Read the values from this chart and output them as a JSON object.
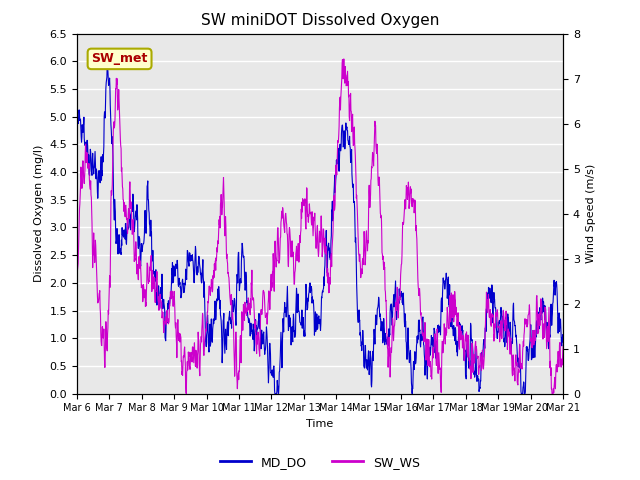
{
  "title": "SW miniDOT Dissolved Oxygen",
  "xlabel": "Time",
  "ylabel_left": "Dissolved Oxygen (mg/l)",
  "ylabel_right": "Wind Speed (m/s)",
  "ylim_left": [
    0.0,
    6.5
  ],
  "ylim_right": [
    0.0,
    8.0
  ],
  "yticks_left": [
    0.0,
    0.5,
    1.0,
    1.5,
    2.0,
    2.5,
    3.0,
    3.5,
    4.0,
    4.5,
    5.0,
    5.5,
    6.0,
    6.5
  ],
  "yticks_right": [
    0.0,
    1.0,
    2.0,
    3.0,
    4.0,
    5.0,
    6.0,
    7.0,
    8.0
  ],
  "xtick_labels": [
    "Mar 6",
    "Mar 7",
    "Mar 8",
    "Mar 9",
    "Mar 10",
    "Mar 11",
    "Mar 12",
    "Mar 13",
    "Mar 14",
    "Mar 15",
    "Mar 16",
    "Mar 17",
    "Mar 18",
    "Mar 19",
    "Mar 20",
    "Mar 21"
  ],
  "color_do": "#0000cc",
  "color_ws": "#cc00cc",
  "annotation_text": "SW_met",
  "annotation_color": "#aa0000",
  "annotation_bg": "#ffffcc",
  "annotation_border": "#aaaa00",
  "legend_do": "MD_DO",
  "legend_ws": "SW_WS",
  "bg_color": "#e8e8e8",
  "fig_bg": "#ffffff",
  "grid_color": "#ffffff",
  "linewidth": 0.8,
  "title_fontsize": 11,
  "label_fontsize": 8,
  "tick_fontsize": 8,
  "legend_fontsize": 9
}
